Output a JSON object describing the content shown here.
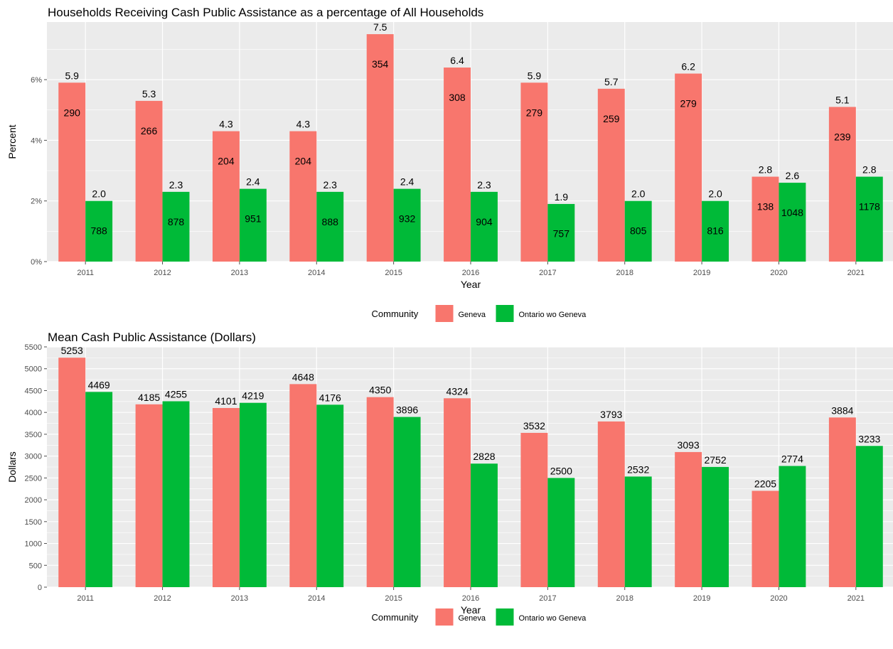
{
  "colors": {
    "panel": "#EBEBEB",
    "grid_major": "#FFFFFF",
    "geneva": "#F8766D",
    "ontario": "#00BA38",
    "tick": "#4D4D4D"
  },
  "chart_data": [
    {
      "type": "bar",
      "title": "Households Receiving Cash Public Assistance as a percentage of All Households",
      "xlabel": "Year",
      "ylabel": "Percent",
      "ylim": [
        0,
        7.9
      ],
      "y_ticks": [
        0,
        2,
        4,
        6
      ],
      "y_tick_labels": [
        "0%",
        "2%",
        "4%",
        "6%"
      ],
      "categories": [
        "2011",
        "2012",
        "2013",
        "2014",
        "2015",
        "2016",
        "2017",
        "2018",
        "2019",
        "2020",
        "2021"
      ],
      "series": [
        {
          "name": "Geneva",
          "values": [
            5.9,
            5.3,
            4.3,
            4.3,
            7.5,
            6.4,
            5.9,
            5.7,
            6.2,
            2.8,
            5.1
          ],
          "value_labels": [
            "5.9",
            "5.3",
            "4.3",
            "4.3",
            "7.5",
            "6.4",
            "5.9",
            "5.7",
            "6.2",
            "2.8",
            "5.1"
          ],
          "counts": [
            "290",
            "266",
            "204",
            "204",
            "354",
            "308",
            "279",
            "259",
            "279",
            "138",
            "239"
          ]
        },
        {
          "name": "Ontario wo Geneva",
          "values": [
            2.0,
            2.3,
            2.4,
            2.3,
            2.4,
            2.3,
            1.9,
            2.0,
            2.0,
            2.6,
            2.8
          ],
          "value_labels": [
            "2.0",
            "2.3",
            "2.4",
            "2.3",
            "2.4",
            "2.3",
            "1.9",
            "2.0",
            "2.0",
            "2.6",
            "2.8"
          ],
          "counts": [
            "788",
            "878",
            "951",
            "888",
            "932",
            "904",
            "757",
            "805",
            "816",
            "1048",
            "1178"
          ]
        }
      ],
      "legend": {
        "title": "Community",
        "position": "bottom"
      },
      "grid": true
    },
    {
      "type": "bar",
      "title": "Mean Cash Public Assistance (Dollars)",
      "xlabel": "Year",
      "ylabel": "Dollars",
      "ylim": [
        0,
        5500
      ],
      "y_ticks": [
        0,
        500,
        1000,
        1500,
        2000,
        2500,
        3000,
        3500,
        4000,
        4500,
        5000,
        5500
      ],
      "y_tick_labels": [
        "0",
        "500",
        "1000",
        "1500",
        "2000",
        "2500",
        "3000",
        "3500",
        "4000",
        "4500",
        "5000",
        "5500"
      ],
      "categories": [
        "2011",
        "2012",
        "2013",
        "2014",
        "2015",
        "2016",
        "2017",
        "2018",
        "2019",
        "2020",
        "2021"
      ],
      "series": [
        {
          "name": "Geneva",
          "values": [
            5253,
            4185,
            4101,
            4648,
            4350,
            4324,
            3532,
            3793,
            3093,
            2205,
            3884
          ],
          "value_labels": [
            "5253",
            "4185",
            "4101",
            "4648",
            "4350",
            "4324",
            "3532",
            "3793",
            "3093",
            "2205",
            "3884"
          ]
        },
        {
          "name": "Ontario wo Geneva",
          "values": [
            4469,
            4255,
            4219,
            4176,
            3896,
            2828,
            2500,
            2532,
            2752,
            2774,
            3233
          ],
          "value_labels": [
            "4469",
            "4255",
            "4219",
            "4176",
            "3896",
            "2828",
            "2500",
            "2532",
            "2752",
            "2774",
            "3233"
          ]
        }
      ],
      "legend": {
        "title": "Community",
        "position": "bottom"
      },
      "grid": true
    }
  ]
}
